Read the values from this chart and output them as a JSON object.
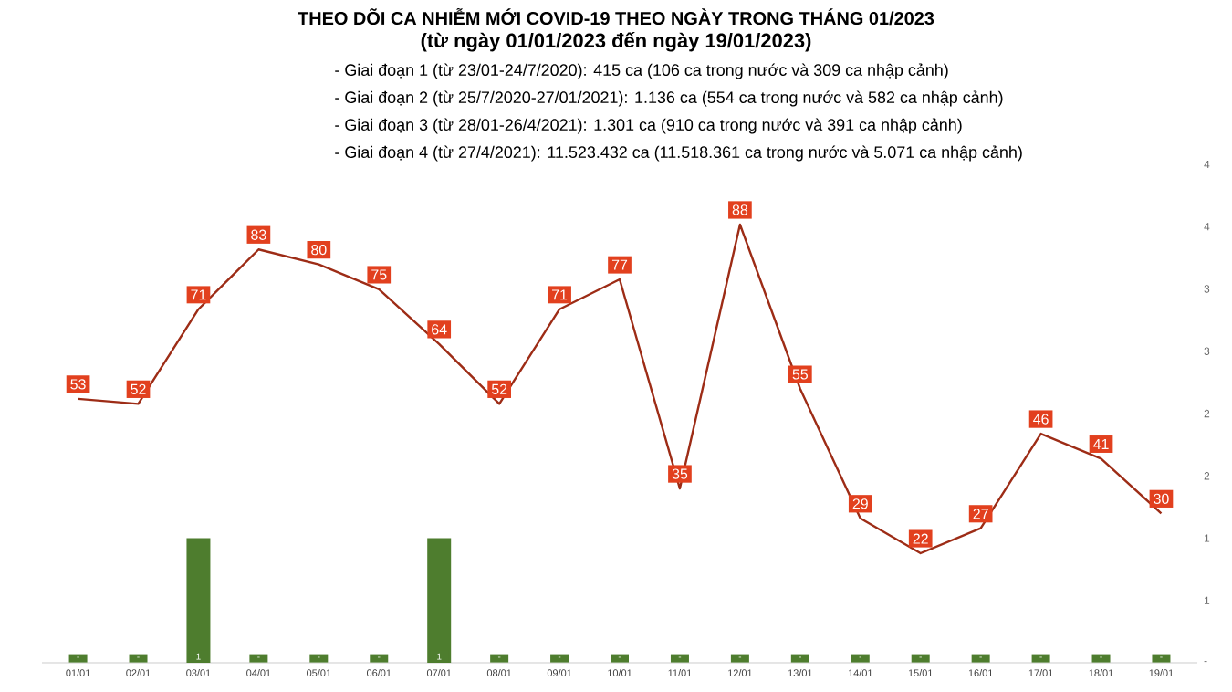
{
  "chart_data": {
    "type": "line",
    "title": "THEO DÕI CA NHIỄM MỚI COVID-19 THEO NGÀY TRONG THÁNG 01/2023",
    "subtitle": "(từ ngày 01/01/2023 đến ngày 19/01/2023)",
    "annotations": [
      "- Giai đoạn 1 (từ 23/01-24/7/2020): 415 ca (106 ca trong nước và 309 ca nhập cảnh)",
      "- Giai đoạn 2 (từ 25/7/2020-27/01/2021): 1.136 ca (554 ca trong nước và 582 ca nhập cảnh)",
      "- Giai đoạn 3 (từ 28/01-26/4/2021): 1.301 ca (910 ca trong nước và 391 ca nhập cảnh)",
      "- Giai đoạn 4 (từ 27/4/2021): 11.523.432 ca (11.518.361 ca trong nước và 5.071 ca nhập cảnh)"
    ],
    "categories": [
      "01/01",
      "02/01",
      "03/01",
      "04/01",
      "05/01",
      "06/01",
      "07/01",
      "08/01",
      "09/01",
      "10/01",
      "11/01",
      "12/01",
      "13/01",
      "14/01",
      "15/01",
      "16/01",
      "17/01",
      "18/01",
      "19/01"
    ],
    "y2lim": [
      0,
      4
    ],
    "y2ticks": [
      {
        "value": 0,
        "label": "-"
      },
      {
        "value": 0.5,
        "label": "1"
      },
      {
        "value": 1,
        "label": "1"
      },
      {
        "value": 1.5,
        "label": "2"
      },
      {
        "value": 2,
        "label": "2"
      },
      {
        "value": 2.5,
        "label": "3"
      },
      {
        "value": 3,
        "label": "3"
      },
      {
        "value": 3.5,
        "label": "4"
      },
      {
        "value": 4,
        "label": "4"
      }
    ],
    "series": [
      {
        "type": "bar",
        "axis": "y2",
        "color": "#4e7d2e",
        "values": [
          0,
          0,
          1,
          0,
          0,
          0,
          1,
          0,
          0,
          0,
          0,
          0,
          0,
          0,
          0,
          0,
          0,
          0,
          0
        ],
        "value_labels": [
          "-",
          "-",
          "1",
          "-",
          "-",
          "-",
          "1",
          "-",
          "-",
          "-",
          "-",
          "-",
          "-",
          "-",
          "-",
          "-",
          "-",
          "-",
          "-"
        ]
      },
      {
        "color": "#9d2c16",
        "values": [
          53,
          52,
          71,
          83,
          80,
          75,
          64,
          52,
          71,
          77,
          35,
          88,
          55,
          29,
          22,
          27,
          46,
          41,
          30
        ],
        "value_labels": [
          "53",
          "52",
          "71",
          "83",
          "80",
          "75",
          "64",
          "52",
          "71",
          "77",
          "35",
          "88",
          "55",
          "29",
          "22",
          "27",
          "46",
          "41",
          "30"
        ]
      }
    ]
  }
}
